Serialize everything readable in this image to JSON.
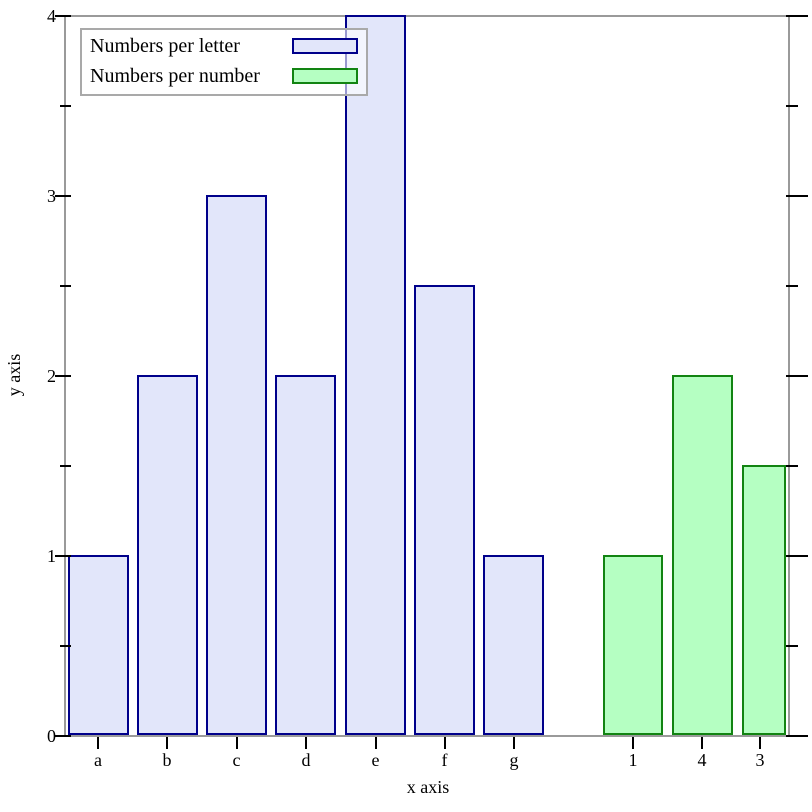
{
  "chart_data": {
    "type": "bar",
    "title": "",
    "xlabel": "x axis",
    "ylabel": "y axis",
    "ylim": [
      0,
      4
    ],
    "y_major_ticks": [
      0,
      1,
      2,
      3,
      4
    ],
    "y_minor_ticks": [
      0.5,
      1.5,
      2.5,
      3.5
    ],
    "grid": false,
    "legend_position": "top-left",
    "series": [
      {
        "name": "Numbers per letter",
        "categories": [
          "a",
          "b",
          "c",
          "d",
          "e",
          "f",
          "g"
        ],
        "values": [
          1,
          2,
          3,
          2,
          4,
          2.5,
          1
        ],
        "fill": "#e2e6fa",
        "stroke": "#00008b"
      },
      {
        "name": "Numbers per number",
        "categories": [
          "1",
          "4",
          "3"
        ],
        "values": [
          1,
          2,
          1.5
        ],
        "fill": "#b5ffc2",
        "stroke": "#128412"
      }
    ],
    "colors": {
      "axis_frame": "#9a9a9a",
      "tick": "#000000",
      "legend_border": "#a9a9a9",
      "text": "#000000"
    }
  }
}
